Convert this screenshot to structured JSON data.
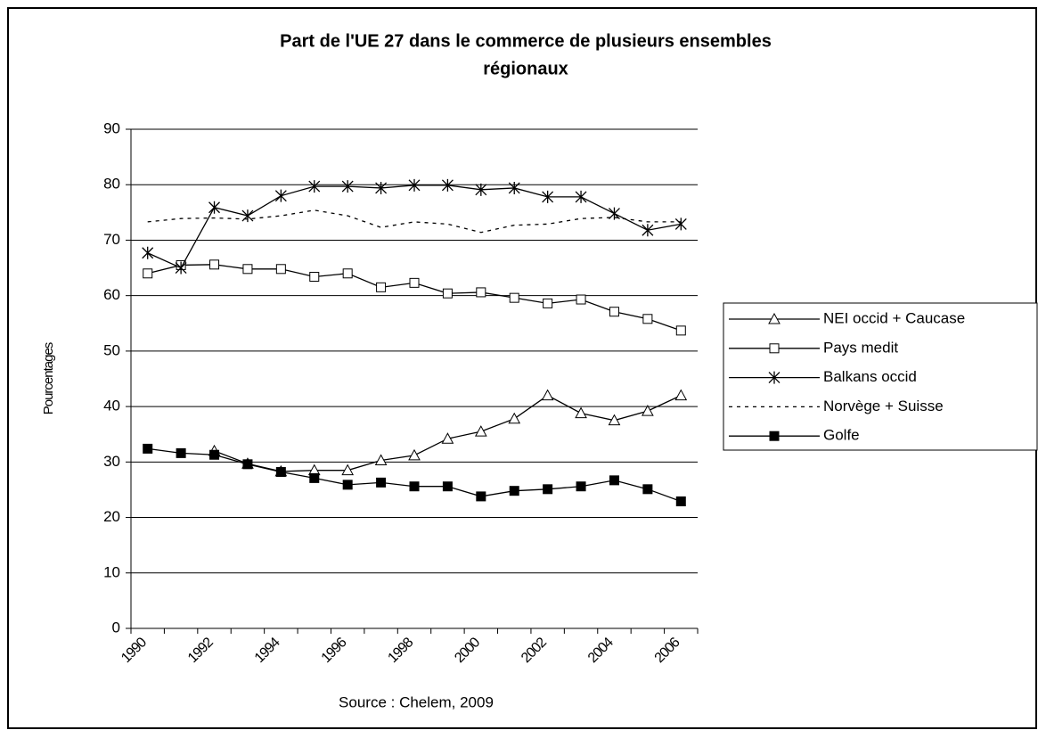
{
  "chart_data": {
    "type": "line",
    "title": [
      "Part de l'UE 27 dans le commerce de plusieurs ensembles",
      "régionaux"
    ],
    "ylabel": "Pourcentages",
    "source": "Source : Chelem, 2009",
    "categories": [
      "1990",
      null,
      "1992",
      null,
      "1994",
      null,
      "1996",
      null,
      "1998",
      null,
      "2000",
      null,
      "2002",
      null,
      "2004",
      null,
      "2006"
    ],
    "ylim": [
      0,
      90
    ],
    "yticks": [
      0,
      10,
      20,
      30,
      40,
      50,
      60,
      70,
      80,
      90
    ],
    "grid": true,
    "legend": "right",
    "series": [
      {
        "name": "NEI occid + Caucase",
        "color": "#000000",
        "marker": "triangle",
        "dash": false,
        "values": [
          null,
          null,
          32,
          29.7,
          28.3,
          28.5,
          28.5,
          30.3,
          31.2,
          34.2,
          35.5,
          37.8,
          42,
          38.8,
          37.5,
          39.2,
          42
        ]
      },
      {
        "name": "Pays medit",
        "color": "#000000",
        "marker": "square-open",
        "dash": false,
        "values": [
          64,
          65.5,
          65.6,
          64.8,
          64.8,
          63.4,
          64,
          61.5,
          62.3,
          60.4,
          60.6,
          59.6,
          58.6,
          59.3,
          57.1,
          55.8,
          53.7
        ]
      },
      {
        "name": "Balkans occid",
        "color": "#000000",
        "marker": "star",
        "dash": false,
        "values": [
          67.7,
          65,
          75.9,
          74.4,
          78,
          79.7,
          79.7,
          79.4,
          79.9,
          79.9,
          79.1,
          79.4,
          77.8,
          77.8,
          74.8,
          71.8,
          72.9
        ]
      },
      {
        "name": "Norvège + Suisse",
        "color": "#000000",
        "marker": "none",
        "dash": true,
        "values": [
          73.3,
          73.9,
          74,
          73.8,
          74.4,
          75.4,
          74.4,
          72.3,
          73.3,
          72.9,
          71.4,
          72.7,
          72.9,
          73.9,
          74.1,
          73.3,
          73.3
        ]
      },
      {
        "name": "Golfe",
        "color": "#000000",
        "marker": "square-filled",
        "dash": false,
        "values": [
          32.4,
          31.6,
          31.3,
          29.6,
          28.2,
          27.1,
          25.9,
          26.3,
          25.6,
          25.6,
          23.8,
          24.8,
          25.1,
          25.6,
          26.7,
          25.1,
          22.9
        ]
      }
    ]
  }
}
